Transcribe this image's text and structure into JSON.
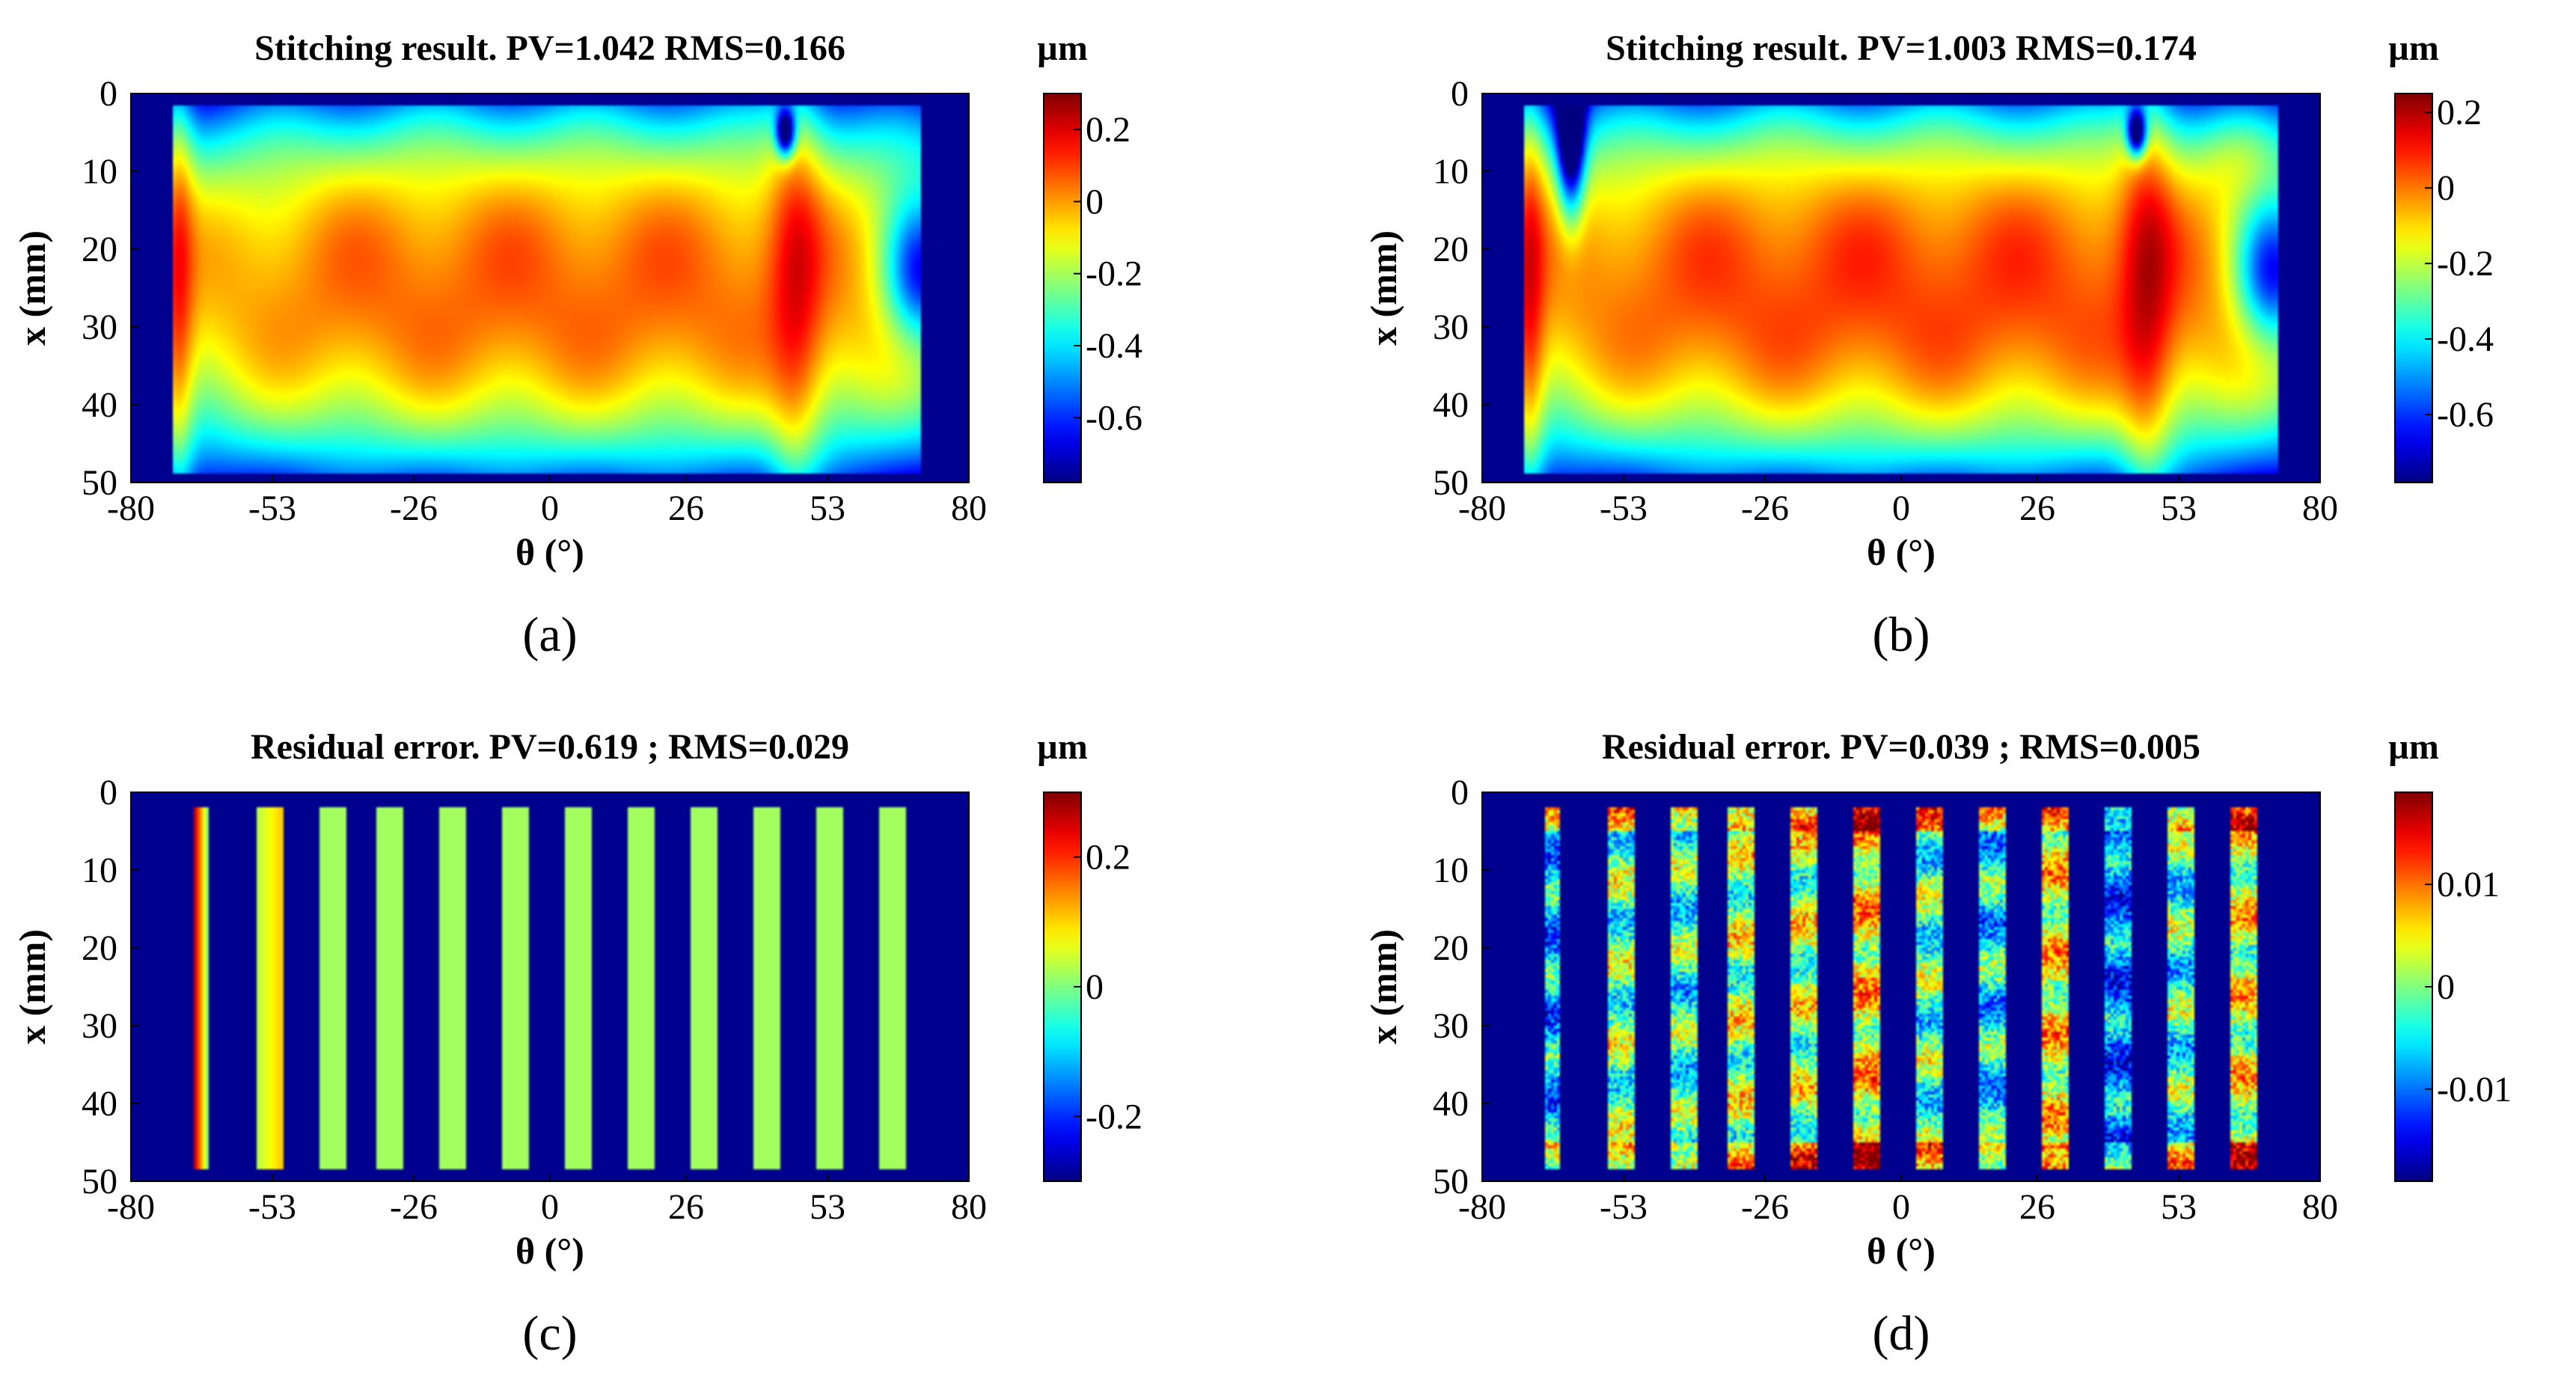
{
  "chart_data": [
    {
      "type": "heatmap",
      "panel_label": "(a)",
      "title": "Stitching result. PV=1.042 RMS=0.166",
      "colorbar_unit": "µm",
      "xlabel": "θ (°)",
      "ylabel": "x (mm)",
      "xlim": [
        -80,
        80
      ],
      "ylim": [
        0,
        50
      ],
      "xticks": [
        "-80",
        "-53",
        "-26",
        "0",
        "26",
        "53",
        "80"
      ],
      "yticks": [
        "0",
        "10",
        "20",
        "30",
        "40",
        "50"
      ],
      "clim": [
        -0.78,
        0.3
      ],
      "colorbar_ticks": [
        "0.2",
        "0",
        "-0.2",
        "-0.4",
        "-0.6"
      ],
      "region": {
        "theta": [
          -72,
          71
        ],
        "x": [
          1.5,
          49
        ]
      },
      "pattern": "surface"
    },
    {
      "type": "heatmap",
      "panel_label": "(b)",
      "title": "Stitching result. PV=1.003 RMS=0.174",
      "colorbar_unit": "µm",
      "xlabel": "θ (°)",
      "ylabel": "x (mm)",
      "xlim": [
        -80,
        80
      ],
      "ylim": [
        0,
        50
      ],
      "xticks": [
        "-80",
        "-53",
        "-26",
        "0",
        "26",
        "53",
        "80"
      ],
      "yticks": [
        "0",
        "10",
        "20",
        "30",
        "40",
        "50"
      ],
      "clim": [
        -0.78,
        0.25
      ],
      "colorbar_ticks": [
        "0.2",
        "0",
        "-0.2",
        "-0.4",
        "-0.6"
      ],
      "region": {
        "theta": [
          -72,
          72
        ],
        "x": [
          1.5,
          49
        ]
      },
      "pattern": "surface"
    },
    {
      "type": "heatmap",
      "panel_label": "(c)",
      "title": "Residual error. PV=0.619 ; RMS=0.029",
      "colorbar_unit": "µm",
      "xlabel": "θ (°)",
      "ylabel": "x (mm)",
      "xlim": [
        -80,
        80
      ],
      "ylim": [
        0,
        50
      ],
      "xticks": [
        "-80",
        "-53",
        "-26",
        "0",
        "26",
        "53",
        "80"
      ],
      "yticks": [
        "0",
        "10",
        "20",
        "30",
        "40",
        "50"
      ],
      "clim": [
        -0.3,
        0.3
      ],
      "colorbar_ticks": [
        "0.2",
        "0",
        "-0.2"
      ],
      "strips_theta": [
        [
          -68,
          -65
        ],
        [
          -56,
          -51
        ],
        [
          -44,
          -39
        ],
        [
          -33,
          -28
        ],
        [
          -21,
          -16
        ],
        [
          -9,
          -4
        ],
        [
          3,
          8
        ],
        [
          15,
          20
        ],
        [
          27,
          32
        ],
        [
          39,
          44
        ],
        [
          51,
          56
        ],
        [
          63,
          68
        ]
      ],
      "strip_x": [
        1.8,
        48.5
      ],
      "pattern": "residual-uniform"
    },
    {
      "type": "heatmap",
      "panel_label": "(d)",
      "title": "Residual error. PV=0.039 ; RMS=0.005",
      "colorbar_unit": "µm",
      "xlabel": "θ (°)",
      "ylabel": "x (mm)",
      "xlim": [
        -80,
        80
      ],
      "ylim": [
        0,
        50
      ],
      "xticks": [
        "-80",
        "-53",
        "-26",
        "0",
        "26",
        "53",
        "80"
      ],
      "yticks": [
        "0",
        "10",
        "20",
        "30",
        "40",
        "50"
      ],
      "clim": [
        -0.019,
        0.019
      ],
      "colorbar_ticks": [
        "0.01",
        "0",
        "-0.01"
      ],
      "strips_theta": [
        [
          -68,
          -65
        ],
        [
          -56,
          -51
        ],
        [
          -44,
          -39
        ],
        [
          -33,
          -28
        ],
        [
          -21,
          -16
        ],
        [
          -9,
          -4
        ],
        [
          3,
          8
        ],
        [
          15,
          20
        ],
        [
          27,
          32
        ],
        [
          39,
          44
        ],
        [
          51,
          56
        ],
        [
          63,
          68
        ]
      ],
      "strip_x": [
        1.8,
        48.5
      ],
      "pattern": "residual-noisy"
    }
  ]
}
